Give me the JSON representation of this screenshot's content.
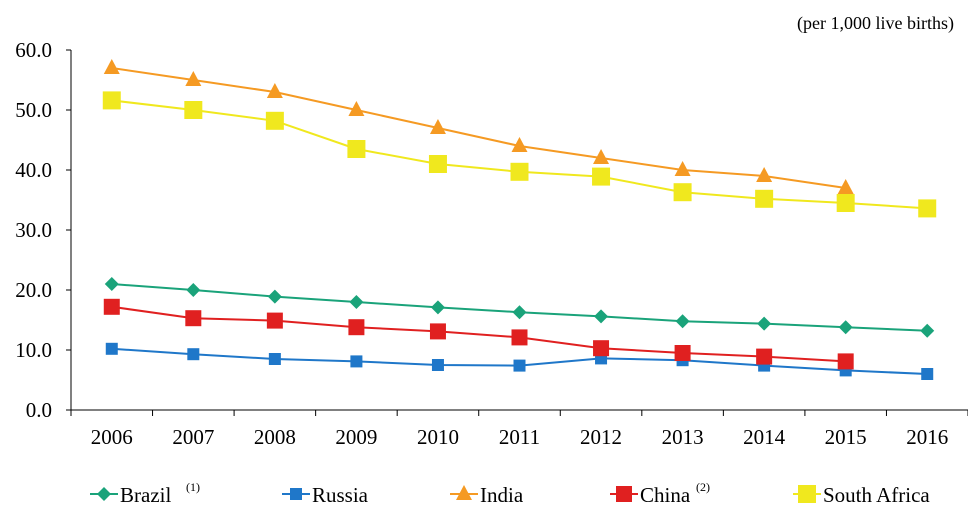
{
  "chart_data": {
    "type": "line",
    "unit_note": "(per 1,000 live births)",
    "title": "",
    "xlabel": "",
    "ylabel": "",
    "ylim": [
      0,
      60
    ],
    "y_ticks": [
      "0.0",
      "10.0",
      "20.0",
      "30.0",
      "40.0",
      "50.0",
      "60.0"
    ],
    "categories": [
      "2006",
      "2007",
      "2008",
      "2009",
      "2010",
      "2011",
      "2012",
      "2013",
      "2014",
      "2015",
      "2016"
    ],
    "grid": false,
    "legend_position": "bottom",
    "series": [
      {
        "name": "Brazil",
        "note": "(1)",
        "color": "#1aa37a",
        "marker": "diamond",
        "values": [
          21.0,
          20.0,
          18.9,
          18.0,
          17.1,
          16.3,
          15.6,
          14.8,
          14.4,
          13.8,
          13.2
        ]
      },
      {
        "name": "Russia",
        "note": "",
        "color": "#1f77c9",
        "marker": "square-small",
        "values": [
          10.2,
          9.3,
          8.5,
          8.1,
          7.5,
          7.4,
          8.6,
          8.3,
          7.4,
          6.6,
          6.0
        ]
      },
      {
        "name": "India",
        "note": "",
        "color": "#f59a23",
        "marker": "triangle",
        "values": [
          57.0,
          55.0,
          53.0,
          50.0,
          47.0,
          44.0,
          42.0,
          40.0,
          39.0,
          37.0,
          null
        ]
      },
      {
        "name": "China",
        "note": "(2)",
        "color": "#e02020",
        "marker": "square",
        "values": [
          17.2,
          15.3,
          14.9,
          13.8,
          13.1,
          12.1,
          10.3,
          9.5,
          8.9,
          8.1,
          null
        ]
      },
      {
        "name": "South Africa",
        "note": "",
        "color": "#f0e81e",
        "marker": "square-large",
        "values": [
          51.6,
          50.0,
          48.2,
          43.5,
          41.0,
          39.7,
          38.9,
          36.3,
          35.2,
          34.5,
          33.6
        ]
      }
    ]
  }
}
